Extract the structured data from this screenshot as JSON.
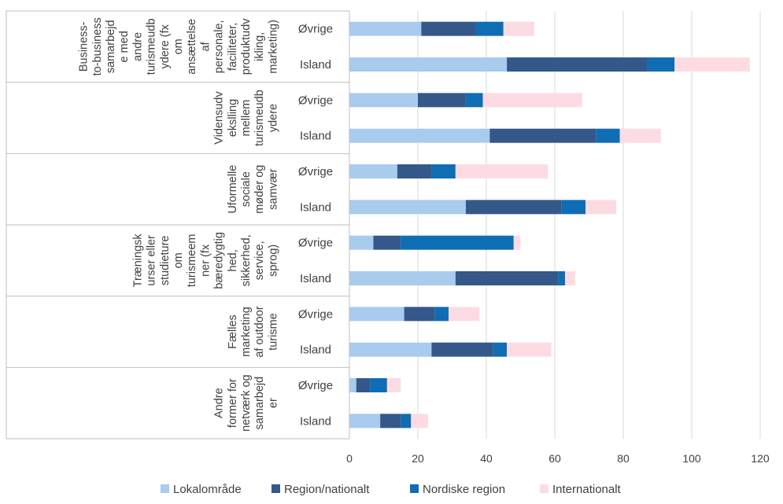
{
  "chart_data": {
    "type": "bar",
    "orientation": "horizontal",
    "stacked": true,
    "groups": [
      {
        "label_lines": [
          "Business-",
          "to-business",
          "samarbejd",
          "e med",
          "andre",
          "turismeudb",
          "ydere (fx",
          "om",
          "ansættelse",
          "af",
          "personale,",
          "faciliteter,",
          "produktudv",
          "ikling,",
          "marketing)"
        ],
        "categories": [
          "Øvrige",
          "Island"
        ],
        "values": [
          [
            21,
            16,
            8,
            9
          ],
          [
            46,
            41,
            8,
            22
          ]
        ]
      },
      {
        "label_lines": [
          "Vidensudv",
          "ekslling",
          "mellem",
          "turismeudb",
          "ydere"
        ],
        "categories": [
          "Øvrige",
          "Island"
        ],
        "values": [
          [
            20,
            14,
            5,
            29
          ],
          [
            41,
            31,
            7,
            12
          ]
        ]
      },
      {
        "label_lines": [
          "Uformelle",
          "sociale",
          "møder og",
          "samvær"
        ],
        "categories": [
          "Øvrige",
          "Island"
        ],
        "values": [
          [
            14,
            10,
            7,
            27
          ],
          [
            34,
            28,
            7,
            9
          ]
        ]
      },
      {
        "label_lines": [
          "Træningsk",
          "urser eller",
          "studieture",
          "om",
          "turismeem",
          "ner (fx",
          "bæredygtig",
          "hed,",
          "sikkerhed,",
          "service,",
          "sprog)"
        ],
        "categories": [
          "Øvrige",
          "Island"
        ],
        "values": [
          [
            7,
            8,
            33,
            2
          ],
          [
            31,
            30,
            2,
            3
          ]
        ]
      },
      {
        "label_lines": [
          "Fælles",
          "marketing",
          "af outdoor",
          "turisme"
        ],
        "categories": [
          "Øvrige",
          "Island"
        ],
        "values": [
          [
            16,
            9,
            4,
            9
          ],
          [
            24,
            18,
            4,
            13
          ]
        ]
      },
      {
        "label_lines": [
          "Andre",
          "former for",
          "netværk og",
          "samarbejd",
          "er"
        ],
        "categories": [
          "Øvrige",
          "Island"
        ],
        "values": [
          [
            2,
            4,
            5,
            4
          ],
          [
            9,
            6,
            3,
            5
          ]
        ]
      }
    ],
    "series": [
      {
        "name": "Lokalområde",
        "color": "#a9cbee"
      },
      {
        "name": "Region/nationalt",
        "color": "#34588a"
      },
      {
        "name": "Nordiske region",
        "color": "#0f6db4"
      },
      {
        "name": "Internationalt",
        "color": "#fcdce2"
      }
    ],
    "xlim": [
      0,
      120
    ],
    "xticks": [
      0,
      20,
      40,
      60,
      80,
      100,
      120
    ],
    "grid": true,
    "legend": "bottom"
  }
}
